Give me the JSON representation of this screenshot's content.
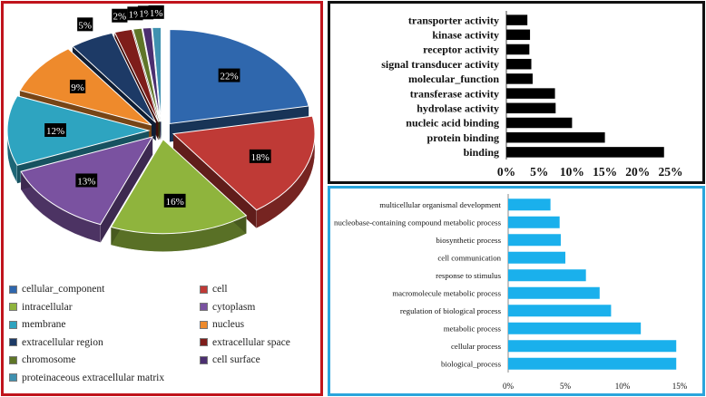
{
  "colors": {
    "pie_border": "#c0141c",
    "mf_border": "#111111",
    "bp_border": "#2aa5dc",
    "mf_bar": "#000000",
    "bp_bar": "#1ab0ec"
  },
  "chart_data": [
    {
      "type": "pie",
      "labels": [
        "cellular_component",
        "cell",
        "intracellular",
        "cytoplasm",
        "membrane",
        "nucleus",
        "extracellular region",
        "extracellular space",
        "chromosome",
        "cell surface",
        "proteinaceous extracellular matrix"
      ],
      "values": [
        22,
        18,
        16,
        13,
        12,
        9,
        5,
        2,
        1,
        1,
        1
      ],
      "value_labels": [
        "22%",
        "18%",
        "16%",
        "13%",
        "12%",
        "9%",
        "5%",
        "2%",
        "1%",
        "1%",
        "1%"
      ],
      "colors": [
        "#2f67ad",
        "#bf3a36",
        "#8fb43d",
        "#7a52a0",
        "#2ea4c0",
        "#ee8a2c",
        "#1d3a66",
        "#7e1d1a",
        "#5f7628",
        "#4b2f70",
        "#3f91b0"
      ],
      "legend_position": "bottom",
      "exploded": true
    },
    {
      "type": "bar",
      "orientation": "horizontal",
      "categories": [
        "binding",
        "protein binding",
        "nucleic acid binding",
        "hydrolase activity",
        "transferase activity",
        "molecular_function",
        "signal transducer activity",
        "receptor activity",
        "kinase activity",
        "transporter activity"
      ],
      "values": [
        24,
        15,
        10,
        7.5,
        7.4,
        4,
        3.8,
        3.5,
        3.6,
        3.2
      ],
      "xlim": [
        0,
        25
      ],
      "ticks": [
        "0%",
        "5%",
        "10%",
        "15%",
        "20%",
        "25%"
      ],
      "grid": false
    },
    {
      "type": "bar",
      "orientation": "horizontal",
      "categories": [
        "biological_process",
        "cellular process",
        "metabolic process",
        "regulation of biological process",
        "macromolecule metabolic process",
        "response to stimulus",
        "cell communication",
        "biosynthetic process",
        "nucleobase-containing compound metabolic process",
        "multicellular organismal development"
      ],
      "values": [
        14.7,
        14.7,
        11.6,
        9,
        8,
        6.8,
        5,
        4.6,
        4.5,
        3.7
      ],
      "xlim": [
        0,
        15
      ],
      "ticks": [
        "0%",
        "5%",
        "10%",
        "15%"
      ],
      "grid": false
    }
  ]
}
